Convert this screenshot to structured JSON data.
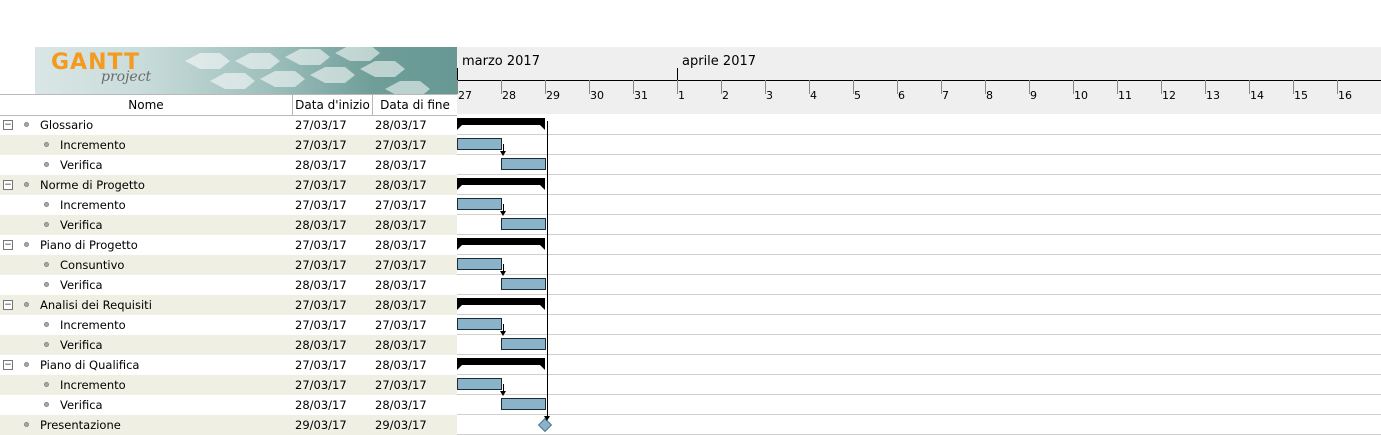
{
  "logo": {
    "brand": "GANTT",
    "sub": "project"
  },
  "columns": {
    "name": "Nome",
    "start": "Data d'inizio",
    "end": "Data di fine"
  },
  "tasks": [
    {
      "name": "Glossario",
      "start": "27/03/17",
      "end": "28/03/17",
      "level": 0,
      "group": true
    },
    {
      "name": "Incremento",
      "start": "27/03/17",
      "end": "27/03/17",
      "level": 1,
      "group": false
    },
    {
      "name": "Verifica",
      "start": "28/03/17",
      "end": "28/03/17",
      "level": 1,
      "group": false
    },
    {
      "name": "Norme di Progetto",
      "start": "27/03/17",
      "end": "28/03/17",
      "level": 0,
      "group": true
    },
    {
      "name": "Incremento",
      "start": "27/03/17",
      "end": "27/03/17",
      "level": 1,
      "group": false
    },
    {
      "name": "Verifica",
      "start": "28/03/17",
      "end": "28/03/17",
      "level": 1,
      "group": false
    },
    {
      "name": "Piano di Progetto",
      "start": "27/03/17",
      "end": "28/03/17",
      "level": 0,
      "group": true
    },
    {
      "name": "Consuntivo",
      "start": "27/03/17",
      "end": "27/03/17",
      "level": 1,
      "group": false
    },
    {
      "name": "Verifica",
      "start": "28/03/17",
      "end": "28/03/17",
      "level": 1,
      "group": false
    },
    {
      "name": "Analisi dei Requisiti",
      "start": "27/03/17",
      "end": "28/03/17",
      "level": 0,
      "group": true
    },
    {
      "name": "Incremento",
      "start": "27/03/17",
      "end": "27/03/17",
      "level": 1,
      "group": false
    },
    {
      "name": "Verifica",
      "start": "28/03/17",
      "end": "28/03/17",
      "level": 1,
      "group": false
    },
    {
      "name": "Piano di Qualifica",
      "start": "27/03/17",
      "end": "28/03/17",
      "level": 0,
      "group": true
    },
    {
      "name": "Incremento",
      "start": "27/03/17",
      "end": "27/03/17",
      "level": 1,
      "group": false
    },
    {
      "name": "Verifica",
      "start": "28/03/17",
      "end": "28/03/17",
      "level": 1,
      "group": false
    },
    {
      "name": "Presentazione",
      "start": "29/03/17",
      "end": "29/03/17",
      "level": 0,
      "group": false,
      "milestone": true
    }
  ],
  "timeline": {
    "months": [
      {
        "label": "marzo 2017",
        "first_day": 0
      },
      {
        "label": "aprile 2017",
        "first_day": 5
      }
    ],
    "days": [
      "27",
      "28",
      "29",
      "30",
      "31",
      "1",
      "2",
      "3",
      "4",
      "5",
      "6",
      "7",
      "8",
      "9",
      "10",
      "11",
      "12",
      "13",
      "14",
      "15",
      "16"
    ]
  },
  "colors": {
    "task_bar": "#8ab3c9",
    "summary_bar": "#000000",
    "row_alt": "#efefe3",
    "logo_accent": "#f39a1f"
  }
}
